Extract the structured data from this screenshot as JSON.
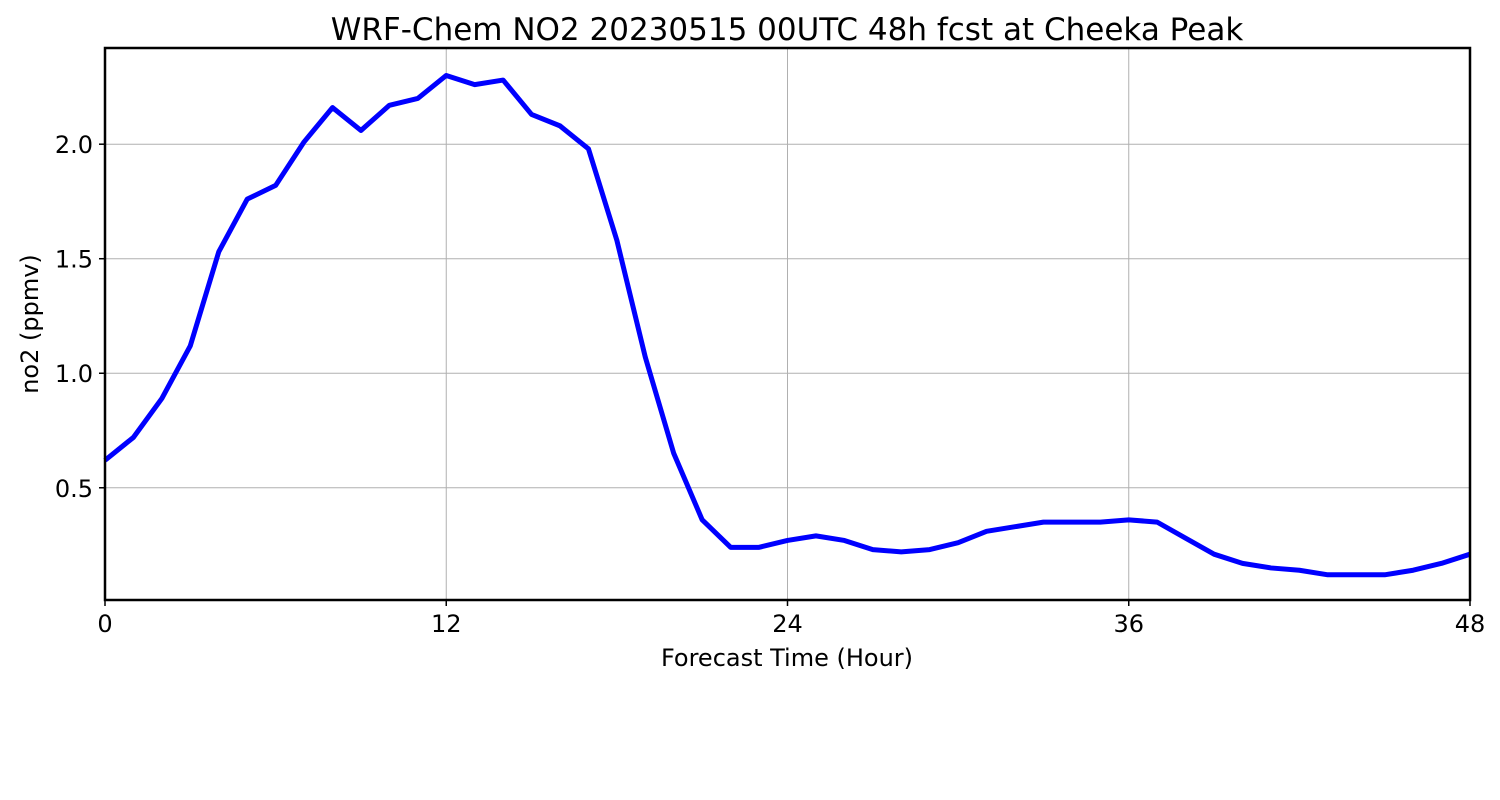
{
  "chart_data": {
    "type": "line",
    "title": "WRF-Chem NO2  20230515 00UTC 48h fcst at Cheeka Peak",
    "xlabel": "Forecast Time (Hour)",
    "ylabel": "no2  (ppmv)",
    "xlim": [
      0,
      48
    ],
    "ylim": [
      0.01,
      2.42
    ],
    "xticks": [
      0,
      12,
      24,
      36,
      48
    ],
    "xtick_labels": [
      "0",
      "12",
      "24",
      "36",
      "48"
    ],
    "yticks": [
      0.5,
      1.0,
      1.5,
      2.0
    ],
    "ytick_labels": [
      "0.5",
      "1.0",
      "1.5",
      "2.0"
    ],
    "grid": true,
    "series": [
      {
        "color": "#0000ff",
        "x": [
          0,
          1,
          2,
          3,
          4,
          5,
          6,
          7,
          8,
          9,
          10,
          11,
          12,
          13,
          14,
          15,
          16,
          17,
          18,
          19,
          20,
          21,
          22,
          23,
          24,
          25,
          26,
          27,
          28,
          29,
          30,
          31,
          32,
          33,
          34,
          35,
          36,
          37,
          38,
          39,
          40,
          41,
          42,
          43,
          44,
          45,
          46,
          47,
          48
        ],
        "values": [
          0.62,
          0.72,
          0.89,
          1.12,
          1.53,
          1.76,
          1.82,
          2.01,
          2.16,
          2.06,
          2.17,
          2.2,
          2.3,
          2.26,
          2.28,
          2.13,
          2.08,
          1.98,
          1.58,
          1.07,
          0.65,
          0.36,
          0.24,
          0.24,
          0.27,
          0.29,
          0.27,
          0.23,
          0.22,
          0.23,
          0.26,
          0.31,
          0.33,
          0.35,
          0.35,
          0.35,
          0.36,
          0.35,
          0.28,
          0.21,
          0.17,
          0.15,
          0.14,
          0.12,
          0.12,
          0.12,
          0.14,
          0.17,
          0.21
        ]
      }
    ]
  }
}
